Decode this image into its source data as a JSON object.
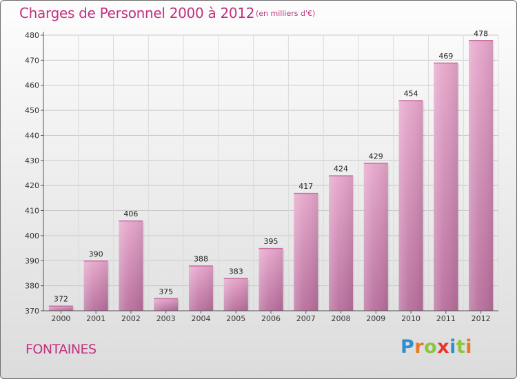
{
  "chart_data": {
    "type": "bar",
    "title": "Charges de Personnel 2000 à 2012",
    "subtitle": "(en milliers d'€)",
    "categories": [
      "2000",
      "2001",
      "2002",
      "2003",
      "2004",
      "2005",
      "2006",
      "2007",
      "2008",
      "2009",
      "2010",
      "2011",
      "2012"
    ],
    "values": [
      372,
      390,
      406,
      375,
      388,
      383,
      395,
      417,
      424,
      429,
      454,
      469,
      478
    ],
    "ylim": [
      370,
      480
    ],
    "yticks": [
      370,
      380,
      390,
      400,
      410,
      420,
      430,
      440,
      450,
      460,
      470,
      480
    ],
    "grid": true,
    "bar_color": "#d98bb8",
    "xlabel": "",
    "ylabel": ""
  },
  "footer": {
    "town": "FONTAINES",
    "logo_letters": [
      {
        "ch": "P",
        "color": "#2f8fd0"
      },
      {
        "ch": "r",
        "color": "#e8762b"
      },
      {
        "ch": "o",
        "color": "#8cc63f"
      },
      {
        "ch": "x",
        "color": "#e8352b"
      },
      {
        "ch": "i",
        "color": "#2f8fd0"
      },
      {
        "ch": "t",
        "color": "#8cc63f"
      },
      {
        "ch": "i",
        "color": "#e8762b"
      }
    ]
  }
}
